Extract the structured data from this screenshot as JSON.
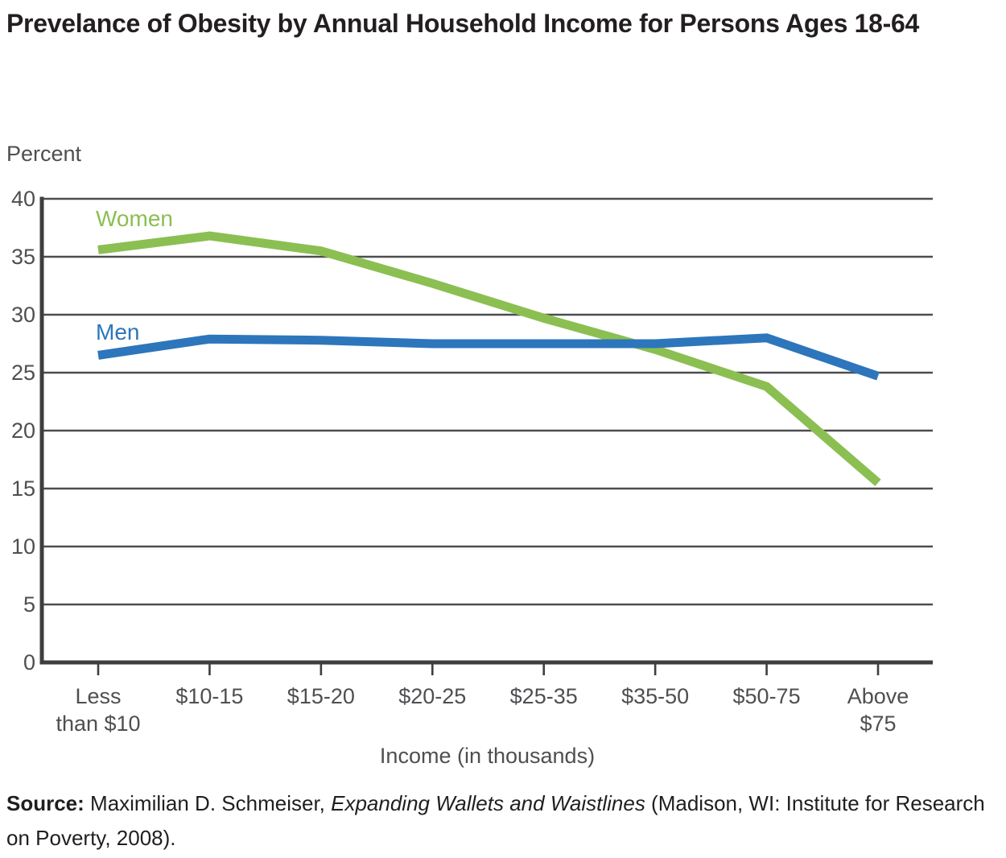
{
  "title": "Prevelance of Obesity by Annual Household Income for Persons Ages 18-64",
  "y_axis_title": "Percent",
  "x_axis_title": "Income (in thousands)",
  "source": {
    "label": "Source:",
    "author": " Maximilian D. Schmeiser, ",
    "work_italic": "Expanding Wallets and Waistlines",
    "publisher": " (Madison, WI: Institute for Research on Poverty, 2008)."
  },
  "colors": {
    "women_line": "#8BBF52",
    "men_line": "#2D76BC",
    "gridline": "#4D4D4E",
    "axis": "#3E3E40",
    "tick_text": "#4F4F52",
    "title_text": "#231F20"
  },
  "chart_data": {
    "type": "line",
    "title": "Prevelance of Obesity by Annual Household Income for Persons Ages 18-64",
    "xlabel": "Income (in thousands)",
    "ylabel": "Percent",
    "categories": [
      "Less than $10",
      "$10-15",
      "$15-20",
      "$20-25",
      "$25-35",
      "$35-50",
      "$50-75",
      "Above $75"
    ],
    "category_lines": [
      [
        "Less",
        "than $10"
      ],
      [
        "$10-15"
      ],
      [
        "$15-20"
      ],
      [
        "$20-25"
      ],
      [
        "$25-35"
      ],
      [
        "$35-50"
      ],
      [
        "$50-75"
      ],
      [
        "Above",
        "$75"
      ]
    ],
    "series": [
      {
        "name": "Women",
        "color": "#8BBF52",
        "values": [
          35.6,
          36.8,
          35.5,
          32.7,
          29.7,
          27.0,
          23.8,
          15.5
        ]
      },
      {
        "name": "Men",
        "color": "#2D76BC",
        "values": [
          26.5,
          27.9,
          27.8,
          27.5,
          27.5,
          27.5,
          28.0,
          24.7
        ]
      }
    ],
    "ylim": [
      0,
      40
    ],
    "yticks": [
      0,
      5,
      10,
      15,
      20,
      25,
      30,
      35,
      40
    ],
    "grid": true,
    "legend_position": "inline-labels-near-line-start"
  }
}
